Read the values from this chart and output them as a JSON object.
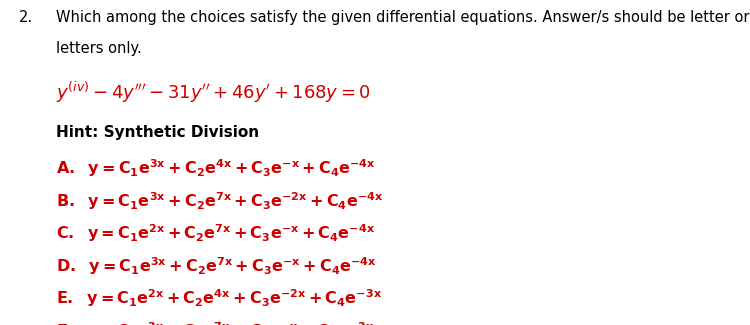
{
  "question_number": "2.",
  "question_line1": "Which among the choices satisfy the given differential equations. Answer/s should be letter or",
  "question_line2": "letters only.",
  "hint": "Hint: Synthetic Division",
  "eq_color": "#cc0000",
  "choice_color": "#cc0000",
  "hint_color": "#000000",
  "question_color": "#000000",
  "background_color": "#ffffff",
  "fontsize_question": 10.5,
  "fontsize_eq": 13.0,
  "fontsize_hint": 11.0,
  "fontsize_choice": 11.5
}
